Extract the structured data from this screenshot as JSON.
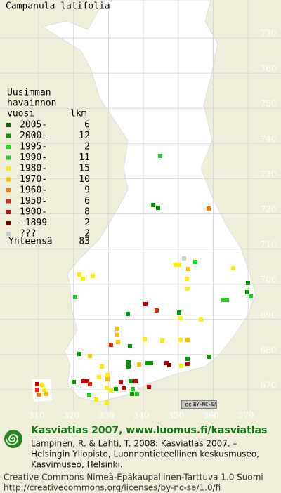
{
  "title": "Campanula latifolia",
  "legend": {
    "header": [
      "Uusimman",
      "havainnon",
      "vuosi"
    ],
    "count_header": "lkm",
    "rows": [
      {
        "label": "2005-",
        "count": 6,
        "color": "#006600"
      },
      {
        "label": "2000-",
        "count": 12,
        "color": "#009900"
      },
      {
        "label": "1995-",
        "count": 2,
        "color": "#00ee00"
      },
      {
        "label": "1990-",
        "count": 11,
        "color": "#22cc22"
      },
      {
        "label": "1980-",
        "count": 15,
        "color": "#ffee00"
      },
      {
        "label": "1970-",
        "count": 10,
        "color": "#ffbb00"
      },
      {
        "label": "1960-",
        "count": 9,
        "color": "#ff7700"
      },
      {
        "label": "1950-",
        "count": 6,
        "color": "#ee2200"
      },
      {
        "label": "1900-",
        "count": 8,
        "color": "#cc0000"
      },
      {
        "label": "-1899",
        "count": 2,
        "color": "#880000"
      },
      {
        "label": "???",
        "count": 2,
        "color": "#cccccc"
      }
    ],
    "total_label": "Yhteensä",
    "total": 83
  },
  "map": {
    "northing_labels": [
      770,
      760,
      750,
      740,
      730,
      720,
      710,
      700,
      690,
      680,
      670
    ],
    "easting_labels": [
      310,
      320,
      330,
      340,
      350,
      360,
      370
    ],
    "license_badge": {
      "symbol": "cc",
      "text": "BY-NC-SA"
    }
  },
  "footer": {
    "site": "Kasviatlas 2007, www.luomus.fi/kasviatlas",
    "citation": [
      "Lampinen, R. & Lahti, T. 2008: Kasviatlas 2007. –",
      "Helsingin Yliopisto, Luonnontieteellinen keskusmuseo,",
      "Kasvimuseo, Helsinki."
    ],
    "license": [
      "Creative Commons Nimeä-Epäkaupallinen-Tarttuva 1.0 Suomi",
      "http://creativecommons.org/licenses/by-nc-sa/1.0/fi"
    ]
  }
}
